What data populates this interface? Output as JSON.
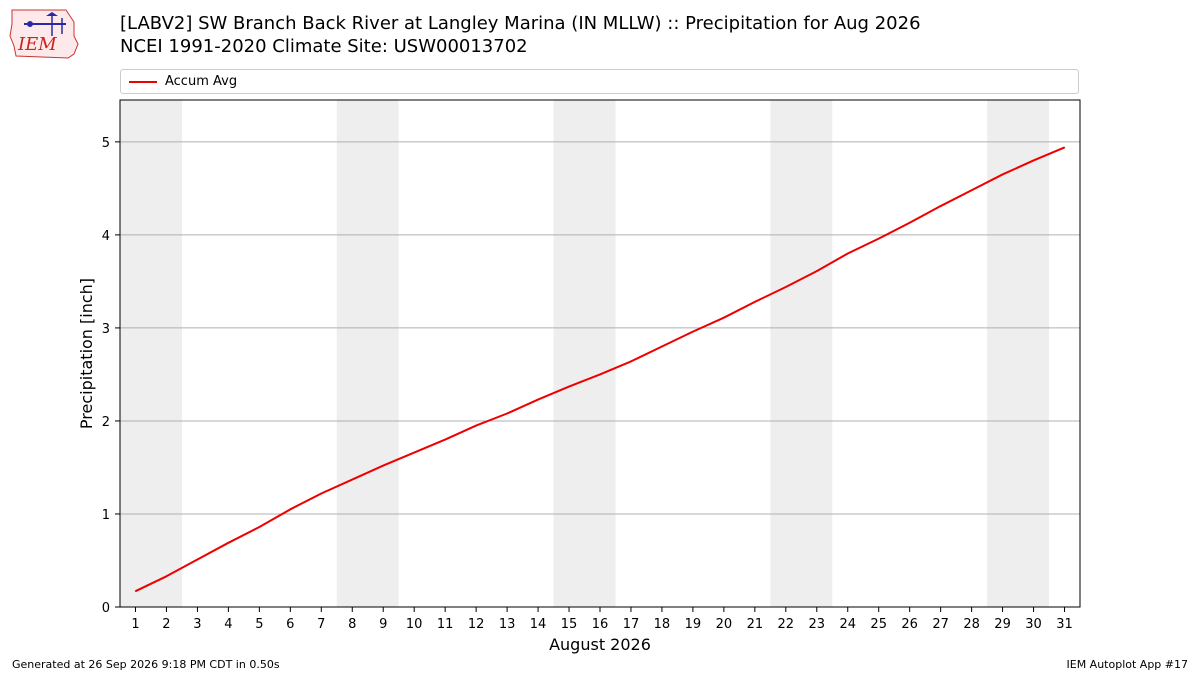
{
  "header": {
    "title_line1": "[LABV2] SW Branch Back River at Langley Marina (IN MLLW) :: Precipitation for Aug 2026",
    "title_line2": "NCEI 1991-2020 Climate Site: USW00013702",
    "logo_text": "IEM"
  },
  "footer": {
    "generated": "Generated at 26 Sep 2026 9:18 PM CDT in 0.50s",
    "app": "IEM Autoplot App #17"
  },
  "chart_data": {
    "type": "line",
    "title": "[LABV2] SW Branch Back River at Langley Marina (IN MLLW) :: Precipitation for Aug 2026",
    "subtitle": "NCEI 1991-2020 Climate Site: USW00013702",
    "xlabel": "August 2026",
    "ylabel": "Precipitation [inch]",
    "xlim": [
      0.5,
      31.5
    ],
    "ylim": [
      0,
      5.45
    ],
    "yticks": [
      0,
      1,
      2,
      3,
      4,
      5
    ],
    "x": [
      1,
      2,
      3,
      4,
      5,
      6,
      7,
      8,
      9,
      10,
      11,
      12,
      13,
      14,
      15,
      16,
      17,
      18,
      19,
      20,
      21,
      22,
      23,
      24,
      25,
      26,
      27,
      28,
      29,
      30,
      31
    ],
    "series": [
      {
        "name": "Accum Avg",
        "color": "#ee0000",
        "values": [
          0.17,
          0.33,
          0.51,
          0.69,
          0.86,
          1.05,
          1.22,
          1.37,
          1.52,
          1.66,
          1.8,
          1.95,
          2.08,
          2.23,
          2.37,
          2.5,
          2.64,
          2.8,
          2.96,
          3.11,
          3.28,
          3.44,
          3.61,
          3.8,
          3.96,
          4.13,
          4.31,
          4.48,
          4.65,
          4.8,
          4.94
        ]
      }
    ],
    "weekend_bands": [
      [
        0.5,
        2.5
      ],
      [
        7.5,
        9.5
      ],
      [
        14.5,
        16.5
      ],
      [
        21.5,
        23.5
      ],
      [
        28.5,
        30.5
      ]
    ],
    "band_color": "#eeeeee",
    "grid": "horizontal",
    "legend_position": "top"
  }
}
